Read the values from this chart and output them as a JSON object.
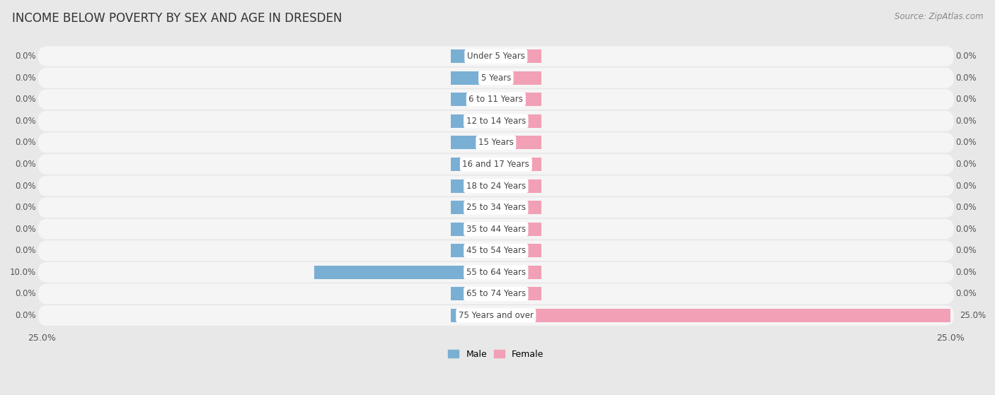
{
  "title": "INCOME BELOW POVERTY BY SEX AND AGE IN DRESDEN",
  "source": "Source: ZipAtlas.com",
  "categories": [
    "Under 5 Years",
    "5 Years",
    "6 to 11 Years",
    "12 to 14 Years",
    "15 Years",
    "16 and 17 Years",
    "18 to 24 Years",
    "25 to 34 Years",
    "35 to 44 Years",
    "45 to 54 Years",
    "55 to 64 Years",
    "65 to 74 Years",
    "75 Years and over"
  ],
  "male_values": [
    0.0,
    0.0,
    0.0,
    0.0,
    0.0,
    0.0,
    0.0,
    0.0,
    0.0,
    0.0,
    10.0,
    0.0,
    0.0
  ],
  "female_values": [
    0.0,
    0.0,
    0.0,
    0.0,
    0.0,
    0.0,
    0.0,
    0.0,
    0.0,
    0.0,
    0.0,
    0.0,
    25.0
  ],
  "male_color": "#7aafd4",
  "female_color": "#f2a0b5",
  "male_label": "Male",
  "female_label": "Female",
  "xlim": 25.0,
  "zero_stub": 2.5,
  "background_color": "#e8e8e8",
  "bar_background_color": "#f5f5f5",
  "bar_height": 0.62,
  "title_fontsize": 12,
  "cat_fontsize": 8.5,
  "tick_fontsize": 9,
  "source_fontsize": 8.5,
  "value_label_fontsize": 8.5
}
